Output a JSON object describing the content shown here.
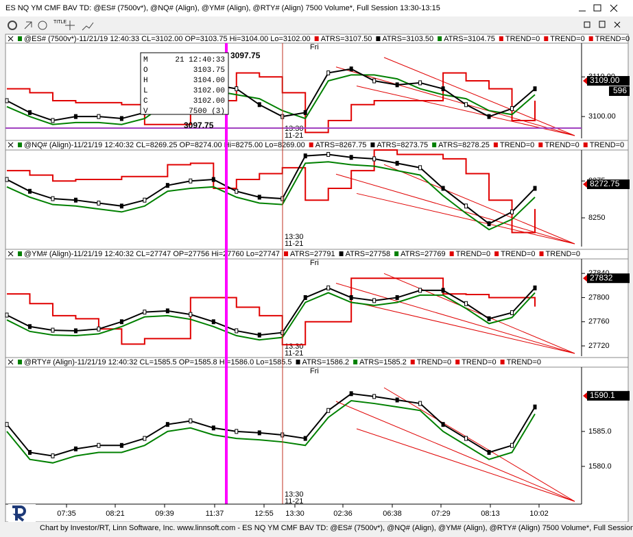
{
  "window": {
    "title": "ES NQ YM CMF BAV TD: @ES# (7500v*), @NQ# (Align), @YM# (Align), @RTY# (Align) 7500 Volume*, Full Session 13:30-13:15"
  },
  "toolbar": {
    "title_button": "TITLE"
  },
  "panes": [
    {
      "symbol": "ES",
      "ylim": [
        3094.5,
        3118.5
      ],
      "yticks": [
        {
          "value": 3100,
          "label": "3100.00"
        },
        {
          "value": 3110,
          "label": "3110.00"
        }
      ],
      "last_price": {
        "value": 3109,
        "label": "3109.00"
      },
      "volume_label": "596",
      "day_label": "Fri",
      "session_time": "13:30",
      "session_date": "11-21",
      "header": [
        {
          "text": "@ES# (7500v*)-11/21/19 12:40:33 CL=3102.00 OP=3103.75 Hi=3104.00 Lo=3102.00",
          "color": "#008000"
        },
        {
          "text": "ATRS=3107.50",
          "color": "#e00000"
        },
        {
          "text": "ATRS=3103.50",
          "color": "#000000"
        },
        {
          "text": "ATRS=3104.75",
          "color": "#008000"
        },
        {
          "text": "TREND=0",
          "color": "#e00000"
        },
        {
          "text": "TREND=0",
          "color": "#e00000"
        },
        {
          "text": "TREND=0",
          "color": "#e00000"
        }
      ],
      "series": [
        {
          "color": "#e00000",
          "values": [
            3107,
            3106,
            3104,
            3103.5,
            3103.5,
            3103,
            3098,
            3098,
            3104,
            3104,
            3111,
            3110,
            3106,
            3096,
            3099,
            3103,
            3104,
            3104,
            3104,
            3111,
            3109,
            3107,
            3099,
            3104
          ]
        },
        {
          "color": "#008000",
          "values": [
            3102.5,
            3100,
            3098,
            3098.5,
            3098.5,
            3098,
            3099.5,
            3103.5,
            3106,
            3106.5,
            3105.5,
            3104.5,
            3101.5,
            3099.5,
            3109,
            3110.5,
            3110.5,
            3109.5,
            3107,
            3105.5,
            3104.5,
            3101.5,
            3100.5,
            3105.5
          ]
        },
        {
          "color": "#000000",
          "values": [
            3104,
            3101,
            3099,
            3100,
            3100,
            3099.5,
            3101,
            3105,
            3107.5,
            3108,
            3107,
            3103,
            3100,
            3101,
            3111,
            3112,
            3109,
            3108,
            3108.5,
            3107,
            3103,
            3100,
            3102,
            3107
          ]
        }
      ],
      "cursor_price_labels": [
        "3097.75",
        "3097.75"
      ],
      "data_window": [
        {
          "key": "M",
          "value": "21 12:40:33"
        },
        {
          "key": "O",
          "value": "3103.75"
        },
        {
          "key": "H",
          "value": "3104.00"
        },
        {
          "key": "L",
          "value": "3102.00"
        },
        {
          "key": "C",
          "value": "3102.00"
        },
        {
          "key": "V",
          "value": "7500 (3)"
        }
      ]
    },
    {
      "symbol": "NQ",
      "ylim": [
        8230.5,
        8296
      ],
      "yticks": [
        8250,
        8275
      ],
      "last_price": {
        "value": 8272.75,
        "label": "8272.75"
      },
      "session_time": "13:30",
      "session_date": "11-21",
      "header": [
        {
          "text": "@NQ# (Align)-11/21/19 12:40:32 CL=8269.25 OP=8274.00 Hi=8275.00 Lo=8269.00",
          "color": "#008000"
        },
        {
          "text": "ATRS=8267.75",
          "color": "#e00000"
        },
        {
          "text": "ATRS=8273.75",
          "color": "#000000"
        },
        {
          "text": "ATRS=8278.25",
          "color": "#008000"
        },
        {
          "text": "TREND=0",
          "color": "#e00000"
        },
        {
          "text": "TREND=0",
          "color": "#e00000"
        },
        {
          "text": "TREND=0",
          "color": "#e00000"
        }
      ],
      "series": [
        {
          "color": "#e00000",
          "values": [
            8282,
            8279,
            8275,
            8276,
            8276,
            8278,
            8278,
            8286,
            8287,
            8270,
            8276,
            8280,
            8284,
            8262,
            8270,
            8282,
            8296,
            8293,
            8293,
            8290,
            8280,
            8262,
            8240,
            8256
          ]
        },
        {
          "color": "#008000",
          "values": [
            8271,
            8264,
            8259,
            8258,
            8256,
            8254,
            8258,
            8268,
            8270,
            8271,
            8264,
            8260,
            8259,
            8287,
            8288,
            8286,
            8285,
            8282,
            8279,
            8265,
            8253,
            8242,
            8249,
            8264
          ]
        },
        {
          "color": "#000000",
          "values": [
            8276,
            8268,
            8263,
            8262,
            8260,
            8258,
            8262,
            8272,
            8275,
            8276,
            8268,
            8264,
            8263,
            8292,
            8293,
            8291,
            8290,
            8287,
            8284,
            8270,
            8258,
            8246,
            8254,
            8270
          ]
        }
      ]
    },
    {
      "symbol": "YM",
      "ylim": [
        27703,
        27864
      ],
      "yticks": [
        27720,
        27760,
        27800,
        27840
      ],
      "last_price": {
        "value": 27832,
        "label": "27832"
      },
      "day_label": "Fri",
      "session_time": "13:30",
      "session_date": "11-21",
      "header": [
        {
          "text": "@YM# (Align)-11/21/19 12:40:32 CL=27747 OP=27756 Hi=27760 Lo=27747",
          "color": "#008000"
        },
        {
          "text": "ATRS=27791",
          "color": "#e00000"
        },
        {
          "text": "ATRS=27758",
          "color": "#000000"
        },
        {
          "text": "ATRS=27769",
          "color": "#008000"
        },
        {
          "text": "TREND=0",
          "color": "#e00000"
        },
        {
          "text": "TREND=0",
          "color": "#e00000"
        },
        {
          "text": "TREND=0",
          "color": "#e00000"
        }
      ],
      "series": [
        {
          "color": "#e00000",
          "values": [
            27806,
            27790,
            27770,
            27765,
            27748,
            27723,
            27732,
            27732,
            27800,
            27800,
            27784,
            27770,
            27722,
            27760,
            27760,
            27832,
            27832,
            27832,
            27832,
            27806,
            27805,
            27800,
            27800,
            27785
          ]
        },
        {
          "color": "#008000",
          "values": [
            27763,
            27744,
            27738,
            27737,
            27740,
            27752,
            27768,
            27770,
            27764,
            27752,
            27737,
            27730,
            27734,
            27792,
            27808,
            27792,
            27787,
            27792,
            27804,
            27804,
            27782,
            27757,
            27767,
            27808
          ]
        },
        {
          "color": "#000000",
          "values": [
            27771,
            27752,
            27746,
            27745,
            27748,
            27760,
            27776,
            27778,
            27772,
            27760,
            27745,
            27738,
            27742,
            27800,
            27816,
            27800,
            27795,
            27800,
            27812,
            27812,
            27790,
            27765,
            27775,
            27816
          ]
        }
      ]
    },
    {
      "symbol": "RTY",
      "ylim": [
        1574.6,
        1594.2
      ],
      "yticks": [
        {
          "value": 1580,
          "label": "1580.0"
        },
        {
          "value": 1585,
          "label": "1585.0"
        }
      ],
      "last_price": {
        "value": 1590.1,
        "label": "1590.1"
      },
      "day_label": "Fri",
      "session_time": "13:30",
      "session_date": "11-21",
      "header": [
        {
          "text": "@RTY# (Align)-11/21/19 12:40:32 CL=1585.5 OP=1585.8 Hi=1586.0 Lo=1585.5",
          "color": "#008000"
        },
        {
          "text": "ATRS=1586.2",
          "color": "#000000"
        },
        {
          "text": "ATRS=1585.2",
          "color": "#008000"
        },
        {
          "text": "TREND=0",
          "color": "#e00000"
        },
        {
          "text": "TREND=0",
          "color": "#e00000"
        },
        {
          "text": "TREND=0",
          "color": "#e00000"
        }
      ],
      "series": [
        {
          "color": "#008000",
          "values": [
            1585,
            1581,
            1580.5,
            1581.5,
            1582,
            1582,
            1583,
            1585,
            1585.5,
            1584.5,
            1584,
            1583.8,
            1583.5,
            1583,
            1587,
            1589.4,
            1589,
            1588.5,
            1588,
            1585,
            1583,
            1581,
            1582,
            1587.5
          ]
        },
        {
          "color": "#000000",
          "values": [
            1586,
            1582,
            1581.5,
            1582.5,
            1583,
            1583,
            1584,
            1586,
            1586.5,
            1585.5,
            1585,
            1584.8,
            1584.5,
            1584,
            1588,
            1590.4,
            1590,
            1589.5,
            1589,
            1586,
            1584,
            1582,
            1583,
            1588.5
          ]
        }
      ]
    }
  ],
  "x_axis": {
    "labels": [
      "07:35",
      "08:21",
      "09:39",
      "11:37",
      "12:55",
      "13:30",
      "02:36",
      "06:38",
      "07:29",
      "08:13",
      "10:02"
    ]
  },
  "footer": {
    "text": "Chart by Investor/RT, Linn Software, Inc. www.linnsoft.com - ES NQ YM CMF BAV TD: @ES# (7500v*), @NQ# (Align), @YM# (Align), @RTY# (Align) 7500 Volume*, Full Session"
  }
}
